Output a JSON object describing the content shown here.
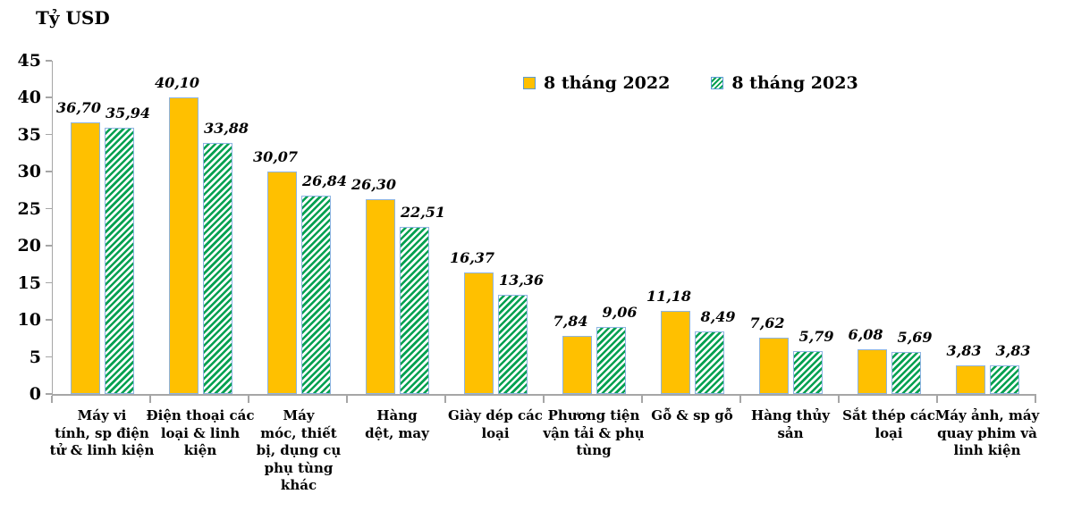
{
  "colors": {
    "series_2022_fill": "#FFC000",
    "series_2023_stripe": "#00A050",
    "bar_border": "#8DB4E2",
    "legend_swatch_border": "#5B9BD5",
    "axis": "#A6A6A6",
    "text": "#000000",
    "background": "#FFFFFF"
  },
  "chart_data": {
    "type": "bar",
    "title": "",
    "ylabel": "Tỷ USD",
    "xlabel": "",
    "ylim": [
      0,
      45
    ],
    "ytick_step": 5,
    "yticks": [
      45,
      40,
      35,
      30,
      25,
      20,
      15,
      10,
      5,
      0
    ],
    "grid": false,
    "legend_position": "top-center",
    "decimal_separator": ",",
    "categories": [
      "Máy vi\ntính, sp điện\ntử & linh kiện",
      "Điện thoại các\nloại & linh\nkiện",
      "Máy\nmóc, thiết\nbị, dụng cụ\nphụ tùng\nkhác",
      "Hàng\ndệt, may",
      "Giày dép các\nloại",
      "Phương tiện\nvận tải & phụ\ntùng",
      "Gỗ & sp gỗ",
      "Hàng thủy\nsản",
      "Sắt thép các\nloại",
      "Máy ảnh, máy\nquay phim và\nlinh kiện"
    ],
    "series": [
      {
        "id": "2022",
        "name": "8 tháng 2022",
        "values": [
          36.7,
          40.1,
          30.07,
          26.3,
          16.37,
          7.84,
          11.18,
          7.62,
          6.08,
          3.83
        ],
        "labels": [
          "36,70",
          "40,10",
          "30,07",
          "26,30",
          "16,37",
          "7,84",
          "11,18",
          "7,62",
          "6,08",
          "3,83"
        ]
      },
      {
        "id": "2023",
        "name": "8 tháng 2023",
        "values": [
          35.94,
          33.88,
          26.84,
          22.51,
          13.36,
          9.06,
          8.49,
          5.79,
          5.69,
          3.83
        ],
        "labels": [
          "35,94",
          "33,88",
          "26,84",
          "22,51",
          "13,36",
          "9,06",
          "8,49",
          "5,79",
          "5,69",
          "3,83"
        ]
      }
    ]
  }
}
